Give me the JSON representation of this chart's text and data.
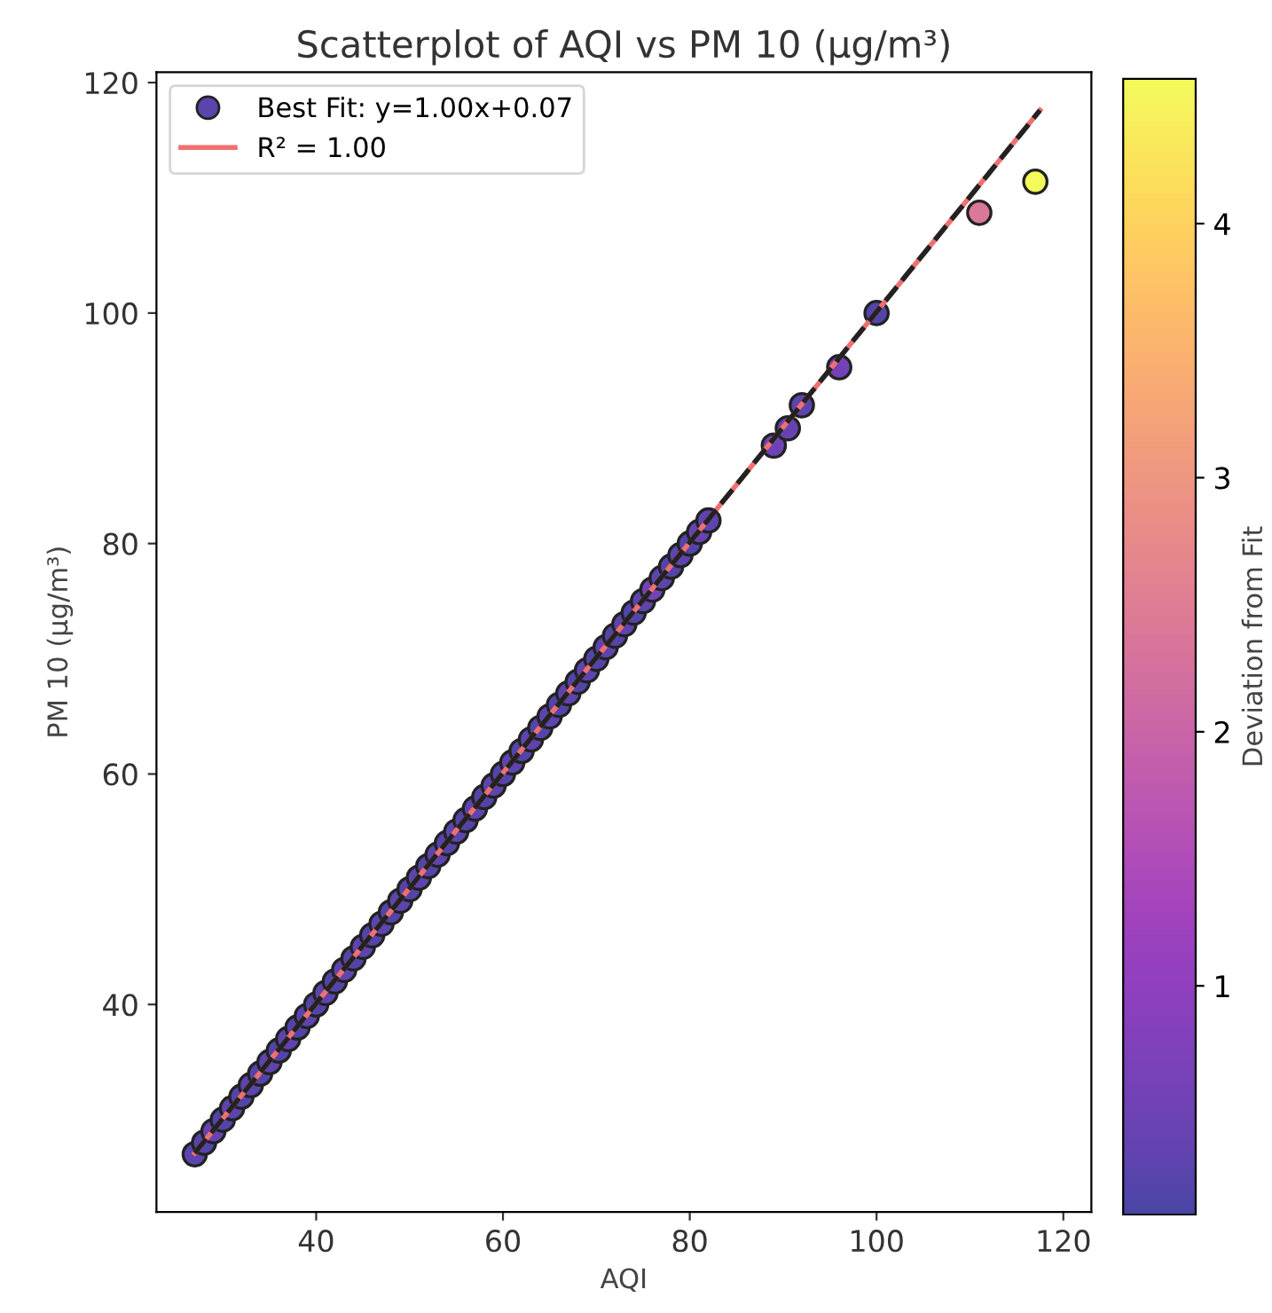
{
  "chart_data": {
    "type": "scatter",
    "title": "Scatterplot of AQI vs PM 10 (µg/m³)",
    "xlabel": "AQI",
    "ylabel": "PM 10 (µg/m³)",
    "clabel": "Deviation from Fit",
    "xlim": [
      22.9,
      123
    ],
    "xticks": [
      40,
      60,
      80,
      100,
      120
    ],
    "ylim": [
      22,
      120.9
    ],
    "yticks": [
      40,
      60,
      80,
      100,
      120
    ],
    "clim": [
      0.1,
      4.57
    ],
    "cticks": [
      1,
      2,
      3,
      4
    ],
    "grid": false,
    "legend": "top left",
    "series": [
      {
        "name": "Best Fit: y=1.00x+0.07",
        "marker": "circle",
        "x": [
          27,
          28,
          29,
          30,
          31,
          32,
          33,
          34,
          35,
          36,
          37,
          38,
          39,
          40,
          41,
          42,
          43,
          44,
          45,
          46,
          47,
          48,
          49,
          50,
          51,
          52,
          53,
          54,
          55,
          56,
          57,
          58,
          59,
          60,
          61,
          62,
          63,
          64,
          65,
          66,
          67,
          68,
          69,
          70,
          71,
          72,
          73,
          74,
          75,
          76,
          77,
          78,
          79,
          80,
          81,
          82,
          89,
          90.5,
          92,
          96,
          100,
          111,
          117
        ],
        "values": [
          27,
          28,
          29,
          30,
          31,
          32,
          33,
          34,
          35,
          36,
          37,
          38,
          39,
          40,
          41,
          42,
          43,
          44,
          45,
          46,
          47,
          48,
          49,
          50,
          51,
          52,
          53,
          54,
          55,
          56,
          57,
          58,
          59,
          60,
          61,
          62,
          63,
          64,
          65,
          66,
          67,
          68,
          69,
          70,
          71,
          72,
          73,
          74,
          75,
          76,
          77,
          78,
          79,
          80,
          81,
          82,
          88.5,
          90,
          92,
          95.3,
          100,
          108.7,
          111.4
        ],
        "cvalues": [
          0.3,
          0.2,
          0.4,
          0.2,
          0.3,
          0.2,
          0.3,
          0.2,
          0.3,
          0.2,
          0.3,
          0.2,
          0.3,
          0.2,
          0.3,
          0.2,
          0.3,
          0.2,
          0.3,
          0.2,
          0.3,
          0.2,
          0.3,
          0.2,
          0.3,
          0.2,
          0.3,
          0.2,
          0.3,
          0.2,
          0.3,
          0.2,
          0.3,
          0.2,
          0.3,
          0.2,
          0.3,
          0.2,
          0.3,
          0.2,
          0.3,
          0.2,
          0.3,
          0.2,
          0.3,
          0.2,
          0.3,
          0.2,
          0.3,
          0.6,
          0.3,
          0.2,
          0.3,
          0.2,
          0.4,
          0.3,
          0.5,
          0.4,
          0.3,
          0.6,
          0.2,
          2.4,
          4.57
        ],
        "colors": [
          "#5b44ac",
          "#5245a9",
          "#6444b0",
          "#5245a9",
          "#5b44ac",
          "#5245a9",
          "#5b44ac",
          "#5245a9",
          "#5b44ac",
          "#5245a9",
          "#5b44ac",
          "#5245a9",
          "#5b44ac",
          "#5245a9",
          "#5b44ac",
          "#5245a9",
          "#5b44ac",
          "#5245a9",
          "#5b44ac",
          "#5245a9",
          "#5b44ac",
          "#5245a9",
          "#5b44ac",
          "#5245a9",
          "#5b44ac",
          "#5245a9",
          "#5b44ac",
          "#5245a9",
          "#5b44ac",
          "#5245a9",
          "#5b44ac",
          "#5245a9",
          "#5b44ac",
          "#5245a9",
          "#5b44ac",
          "#5245a9",
          "#5b44ac",
          "#5245a9",
          "#5b44ac",
          "#5245a9",
          "#5b44ac",
          "#5245a9",
          "#5b44ac",
          "#5245a9",
          "#5b44ac",
          "#5245a9",
          "#5b44ac",
          "#5245a9",
          "#5b44ac",
          "#7442b7",
          "#5b44ac",
          "#5245a9",
          "#5b44ac",
          "#5245a9",
          "#6444b0",
          "#5b44ac",
          "#6c43b4",
          "#6444b0",
          "#5b44ac",
          "#7442b7",
          "#5245a9",
          "#db7897",
          "#f4fa59"
        ]
      },
      {
        "type": "line",
        "name": "R² = 1.00",
        "color": "#f07070",
        "line_style": "solid",
        "x": [
          27,
          117.5
        ],
        "values": [
          27.1,
          117.6
        ]
      },
      {
        "type": "line",
        "color": "#222222",
        "line_style": "dashed",
        "x": [
          27,
          117.5
        ],
        "values": [
          27.1,
          117.6
        ]
      }
    ]
  }
}
